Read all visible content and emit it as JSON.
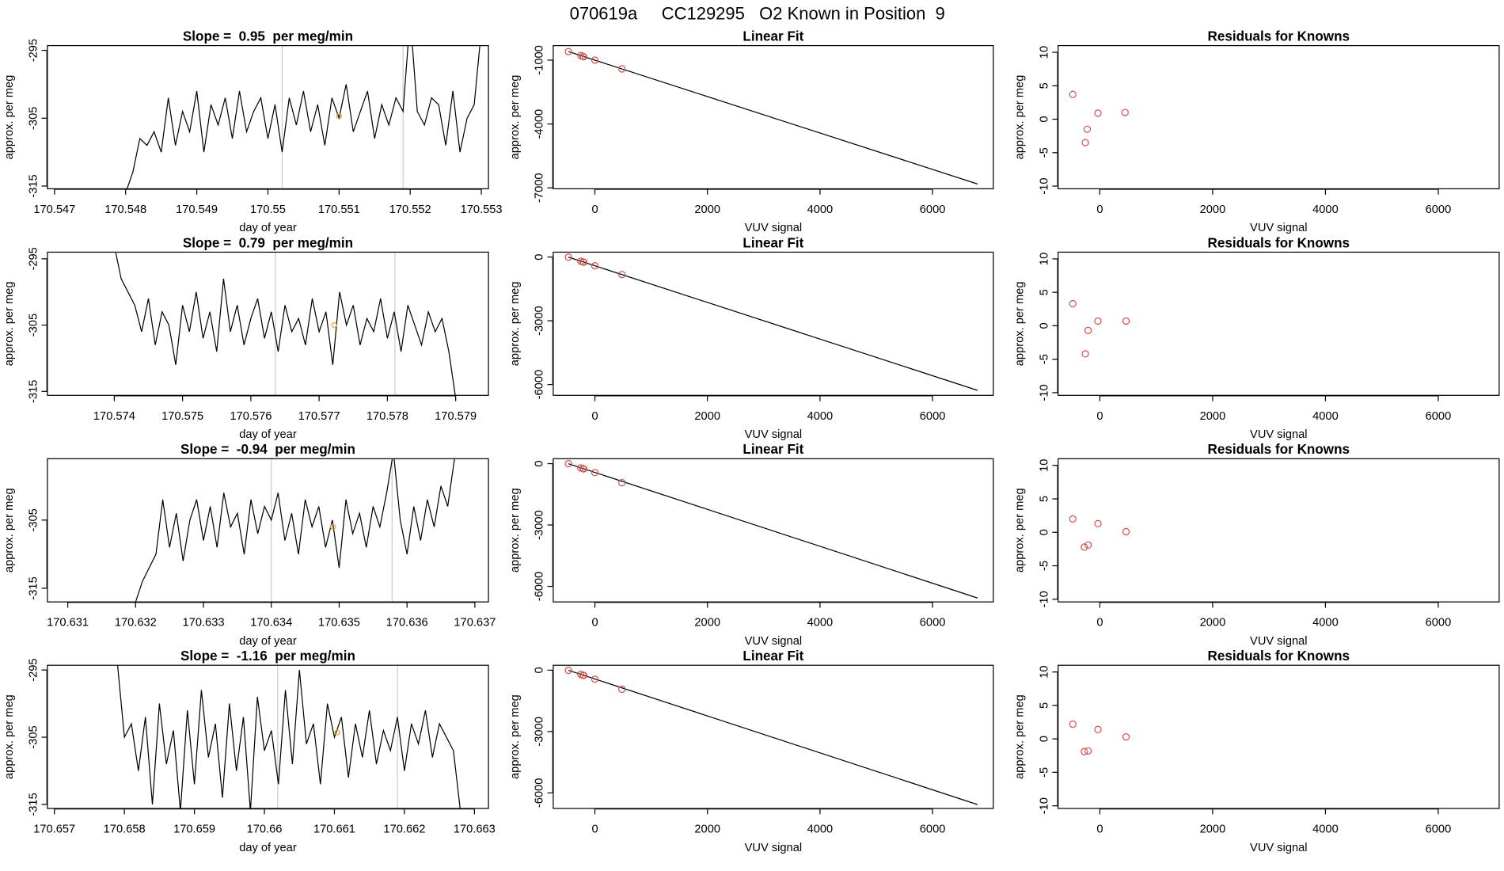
{
  "title": "070619a     CC129295   O2 Known in Position  9",
  "chart_data": [
    {
      "type": "line",
      "title": "Slope =  0.95  per meg/min",
      "xlabel": "day of year",
      "ylabel": "approx. per meg",
      "color": "#000000",
      "x": [
        170.548,
        170.5481,
        170.5482,
        170.5483,
        170.5484,
        170.5485,
        170.5486,
        170.5487,
        170.5488,
        170.5489,
        170.549,
        170.5491,
        170.5492,
        170.5493,
        170.5494,
        170.5495,
        170.5496,
        170.5497,
        170.5498,
        170.5499,
        170.55,
        170.5501,
        170.5502,
        170.5503,
        170.5504,
        170.5505,
        170.5506,
        170.5507,
        170.5508,
        170.5509,
        170.551,
        170.5511,
        170.5512,
        170.5513,
        170.5514,
        170.5515,
        170.5516,
        170.5517,
        170.5518,
        170.5519,
        170.552,
        170.5521,
        170.5522,
        170.5523,
        170.5524,
        170.5525,
        170.5526,
        170.5527,
        170.5528,
        170.5529,
        170.553
      ],
      "values": [
        -316,
        -313,
        -308,
        -309,
        -307,
        -310,
        -302,
        -309,
        -304,
        -307,
        -301,
        -310,
        -303,
        -306,
        -302,
        -308,
        -301,
        -307,
        -304,
        -302,
        -308,
        -303,
        -310,
        -302,
        -306,
        -301,
        -307,
        -303,
        -309,
        -302,
        -305,
        -300,
        -307,
        -304,
        -301,
        -308,
        -303,
        -306,
        -302,
        -304,
        -290,
        -304,
        -306,
        -302,
        -303,
        -309,
        -301,
        -310,
        -305,
        -303,
        -292
      ],
      "xlim": [
        170.5469,
        170.5531
      ],
      "ylim": [
        -315.4,
        -294.3
      ],
      "xticks": [
        170.547,
        170.548,
        170.549,
        170.55,
        170.551,
        170.552,
        170.553
      ],
      "yticks": [
        -315,
        -305,
        -295
      ],
      "vlines": [
        170.5502,
        170.5519
      ],
      "vline_color": "#cccccc",
      "highlight": {
        "x": 170.551,
        "y": -304.7,
        "color": "#f0a030"
      }
    },
    {
      "type": "scatter",
      "title": "Linear Fit",
      "xlabel": "VUV signal",
      "ylabel": "approx. per meg",
      "color": "#d94f4f",
      "x": [
        -470,
        -250,
        -210,
        -200,
        0,
        480
      ],
      "values": [
        -600,
        -790,
        -830,
        -840,
        -1000,
        -1410
      ],
      "fit": {
        "x": [
          -470,
          6800
        ],
        "values": [
          -600,
          -6820
        ],
        "color": "#000000"
      },
      "xlim": [
        -740,
        7080
      ],
      "ylim": [
        -7045,
        -318
      ],
      "xticks": [
        0,
        2000,
        4000,
        6000
      ],
      "yticks": [
        -1000,
        -4000,
        -7000
      ]
    },
    {
      "type": "scatter",
      "title": "Residuals for Knowns",
      "xlabel": "VUV signal",
      "ylabel": "approx. per meg",
      "color": "#d94f4f",
      "x": [
        -480,
        -225,
        -258,
        -34,
        447
      ],
      "values": [
        3.7,
        -1.5,
        -3.5,
        0.9,
        1.0
      ],
      "xlim": [
        -740,
        7080
      ],
      "ylim": [
        -10.4,
        11
      ],
      "xticks": [
        0,
        2000,
        4000,
        6000
      ],
      "yticks": [
        -10,
        -5,
        0,
        5,
        10
      ]
    },
    {
      "type": "line",
      "title": "Slope =  0.79  per meg/min",
      "xlabel": "day of year",
      "ylabel": "approx. per meg",
      "color": "#000000",
      "x": [
        170.574,
        170.5741,
        170.5742,
        170.5743,
        170.5744,
        170.5745,
        170.5746,
        170.5747,
        170.5748,
        170.5749,
        170.575,
        170.5751,
        170.5752,
        170.5753,
        170.5754,
        170.5755,
        170.5756,
        170.5757,
        170.5758,
        170.5759,
        170.576,
        170.5761,
        170.5762,
        170.5763,
        170.5764,
        170.5765,
        170.5766,
        170.5767,
        170.5768,
        170.5769,
        170.577,
        170.5771,
        170.5772,
        170.5773,
        170.5774,
        170.5775,
        170.5776,
        170.5777,
        170.5778,
        170.5779,
        170.578,
        170.5781,
        170.5782,
        170.5783,
        170.5784,
        170.5785,
        170.5786,
        170.5787,
        170.5788,
        170.5789,
        170.579
      ],
      "values": [
        -293,
        -298,
        -300,
        -302,
        -306,
        -301,
        -308,
        -303,
        -305,
        -311,
        -302,
        -306,
        -300,
        -307,
        -303,
        -309,
        -298,
        -306,
        -302,
        -308,
        -304,
        -301,
        -307,
        -303,
        -309,
        -302,
        -306,
        -304,
        -308,
        -301,
        -306,
        -303,
        -311,
        -300,
        -305,
        -302,
        -308,
        -304,
        -306,
        -301,
        -307,
        -303,
        -309,
        -302,
        -305,
        -308,
        -303,
        -306,
        -304,
        -309,
        -316
      ],
      "xlim": [
        170.57302,
        170.57948
      ],
      "ylim": [
        -315.6,
        -294
      ],
      "xticks": [
        170.574,
        170.575,
        170.576,
        170.577,
        170.578,
        170.579
      ],
      "yticks": [
        -315,
        -305,
        -295
      ],
      "vlines": [
        170.57636,
        170.57811
      ],
      "vline_color": "#cccccc",
      "highlight": {
        "x": 170.57722,
        "y": -305,
        "color": "#f0a030"
      }
    },
    {
      "type": "scatter",
      "title": "Linear Fit",
      "xlabel": "VUV signal",
      "ylabel": "approx. per meg",
      "color": "#d94f4f",
      "x": [
        -470,
        -250,
        -210,
        -200,
        0,
        480
      ],
      "values": [
        -5,
        -195,
        -230,
        -240,
        -410,
        -824
      ],
      "fit": {
        "x": [
          -470,
          6800
        ],
        "values": [
          -5,
          -6275
        ],
        "color": "#000000"
      },
      "xlim": [
        -740,
        7080
      ],
      "ylim": [
        -6510,
        230
      ],
      "xticks": [
        0,
        2000,
        4000,
        6000
      ],
      "yticks": [
        0,
        -3000,
        -6000
      ]
    },
    {
      "type": "scatter",
      "title": "Residuals for Knowns",
      "xlabel": "VUV signal",
      "ylabel": "approx. per meg",
      "color": "#d94f4f",
      "x": [
        -480,
        -208,
        -258,
        -34,
        464
      ],
      "values": [
        3.3,
        -0.7,
        -4.2,
        0.7,
        0.7
      ],
      "xlim": [
        -740,
        7080
      ],
      "ylim": [
        -10.4,
        11
      ],
      "xticks": [
        0,
        2000,
        4000,
        6000
      ],
      "yticks": [
        -10,
        -5,
        0,
        5,
        10
      ]
    },
    {
      "type": "line",
      "title": "Slope =  -0.94  per meg/min",
      "xlabel": "day of year",
      "ylabel": "approx. per meg",
      "color": "#000000",
      "x": [
        170.632,
        170.6321,
        170.6322,
        170.6323,
        170.6324,
        170.6325,
        170.6326,
        170.6327,
        170.6328,
        170.6329,
        170.633,
        170.6331,
        170.6332,
        170.6333,
        170.6334,
        170.6335,
        170.6336,
        170.6337,
        170.6338,
        170.6339,
        170.634,
        170.6341,
        170.6342,
        170.6343,
        170.6344,
        170.6345,
        170.6346,
        170.6347,
        170.6348,
        170.6349,
        170.635,
        170.6351,
        170.6352,
        170.6353,
        170.6354,
        170.6355,
        170.6356,
        170.6357,
        170.6358,
        170.6359,
        170.636,
        170.6361,
        170.6362,
        170.6363,
        170.6364,
        170.6365,
        170.6366,
        170.6367
      ],
      "values": [
        -317,
        -314,
        -312,
        -310,
        -302,
        -309,
        -304,
        -311,
        -305,
        -302,
        -308,
        -303,
        -309,
        -301,
        -306,
        -304,
        -310,
        -302,
        -307,
        -303,
        -305,
        -301,
        -308,
        -304,
        -310,
        -302,
        -306,
        -303,
        -309,
        -305,
        -312,
        -302,
        -307,
        -304,
        -309,
        -303,
        -306,
        -301,
        -295,
        -305,
        -310,
        -303,
        -308,
        -302,
        -306,
        -300,
        -303,
        -296
      ],
      "xlim": [
        170.6307,
        170.6372
      ],
      "ylim": [
        -317,
        -296
      ],
      "xticks": [
        170.631,
        170.632,
        170.633,
        170.634,
        170.635,
        170.636,
        170.637
      ],
      "yticks": [
        -315,
        -305
      ],
      "vlines": [
        170.634,
        170.63578
      ],
      "vline_color": "#cccccc",
      "highlight": {
        "x": 170.63491,
        "y": -306,
        "color": "#f0a030"
      }
    },
    {
      "type": "scatter",
      "title": "Linear Fit",
      "xlabel": "VUV signal",
      "ylabel": "approx. per meg",
      "color": "#d94f4f",
      "x": [
        -470,
        -250,
        -210,
        -200,
        0,
        480
      ],
      "values": [
        -5,
        -210,
        -245,
        -255,
        -440,
        -930
      ],
      "fit": {
        "x": [
          -470,
          6800
        ],
        "values": [
          -5,
          -6570
        ],
        "color": "#000000"
      },
      "xlim": [
        -740,
        7080
      ],
      "ylim": [
        -6760,
        240
      ],
      "xticks": [
        0,
        2000,
        4000,
        6000
      ],
      "yticks": [
        0,
        -3000,
        -6000
      ]
    },
    {
      "type": "scatter",
      "title": "Residuals for Knowns",
      "xlabel": "VUV signal",
      "ylabel": "approx. per meg",
      "color": "#d94f4f",
      "x": [
        -480,
        -208,
        -275,
        -34,
        464
      ],
      "values": [
        2.0,
        -1.9,
        -2.2,
        1.3,
        0.1
      ],
      "xlim": [
        -740,
        7080
      ],
      "ylim": [
        -10.4,
        11
      ],
      "xticks": [
        0,
        2000,
        4000,
        6000
      ],
      "yticks": [
        -10,
        -5,
        0,
        5,
        10
      ]
    },
    {
      "type": "line",
      "title": "Slope =  -1.16  per meg/min",
      "xlabel": "day of year",
      "ylabel": "approx. per meg",
      "color": "#000000",
      "x": [
        170.6579,
        170.658,
        170.6581,
        170.6582,
        170.6583,
        170.6584,
        170.6585,
        170.6586,
        170.6587,
        170.6588,
        170.6589,
        170.659,
        170.6591,
        170.6592,
        170.6593,
        170.6594,
        170.6595,
        170.6596,
        170.6597,
        170.6598,
        170.6599,
        170.66,
        170.6601,
        170.6602,
        170.6603,
        170.6604,
        170.6605,
        170.6606,
        170.6607,
        170.6608,
        170.6609,
        170.661,
        170.6611,
        170.6612,
        170.6613,
        170.6614,
        170.6615,
        170.6616,
        170.6617,
        170.6618,
        170.6619,
        170.662,
        170.6621,
        170.6622,
        170.6623,
        170.6624,
        170.6625,
        170.6626,
        170.6627,
        170.6628
      ],
      "values": [
        -294,
        -305,
        -303,
        -310,
        -302,
        -315,
        -300,
        -309,
        -304,
        -316,
        -301,
        -312,
        -298,
        -308,
        -303,
        -314,
        -300,
        -310,
        -302,
        -316,
        -299,
        -307,
        -304,
        -312,
        -298,
        -309,
        -295,
        -306,
        -303,
        -312,
        -300,
        -305,
        -302,
        -311,
        -303,
        -308,
        -301,
        -309,
        -304,
        -307,
        -302,
        -310,
        -303,
        -306,
        -301,
        -308,
        -303,
        -305,
        -307,
        -316
      ],
      "xlim": [
        170.6569,
        170.6632
      ],
      "ylim": [
        -315.6,
        -294.3
      ],
      "xticks": [
        170.657,
        170.658,
        170.659,
        170.66,
        170.661,
        170.662,
        170.663
      ],
      "yticks": [
        -315,
        -305,
        -295
      ],
      "vlines": [
        170.66019,
        170.6619
      ],
      "vline_color": "#cccccc",
      "highlight": {
        "x": 170.66104,
        "y": -304.3,
        "color": "#f0a030"
      }
    },
    {
      "type": "scatter",
      "title": "Linear Fit",
      "xlabel": "VUV signal",
      "ylabel": "approx. per meg",
      "color": "#d94f4f",
      "x": [
        -470,
        -250,
        -210,
        -200,
        0,
        480
      ],
      "values": [
        -5,
        -210,
        -245,
        -255,
        -440,
        -930
      ],
      "fit": {
        "x": [
          -470,
          6800
        ],
        "values": [
          -5,
          -6570
        ],
        "color": "#000000"
      },
      "xlim": [
        -740,
        7080
      ],
      "ylim": [
        -6760,
        240
      ],
      "xticks": [
        0,
        2000,
        4000,
        6000
      ],
      "yticks": [
        0,
        -3000,
        -6000
      ]
    },
    {
      "type": "scatter",
      "title": "Residuals for Knowns",
      "xlabel": "VUV signal",
      "ylabel": "approx. per meg",
      "color": "#d94f4f",
      "x": [
        -480,
        -208,
        -275,
        -34,
        464
      ],
      "values": [
        2.2,
        -1.8,
        -1.9,
        1.4,
        0.3
      ],
      "xlim": [
        -740,
        7080
      ],
      "ylim": [
        -10.4,
        11
      ],
      "xticks": [
        0,
        2000,
        4000,
        6000
      ],
      "yticks": [
        -10,
        -5,
        0,
        5,
        10
      ]
    }
  ]
}
